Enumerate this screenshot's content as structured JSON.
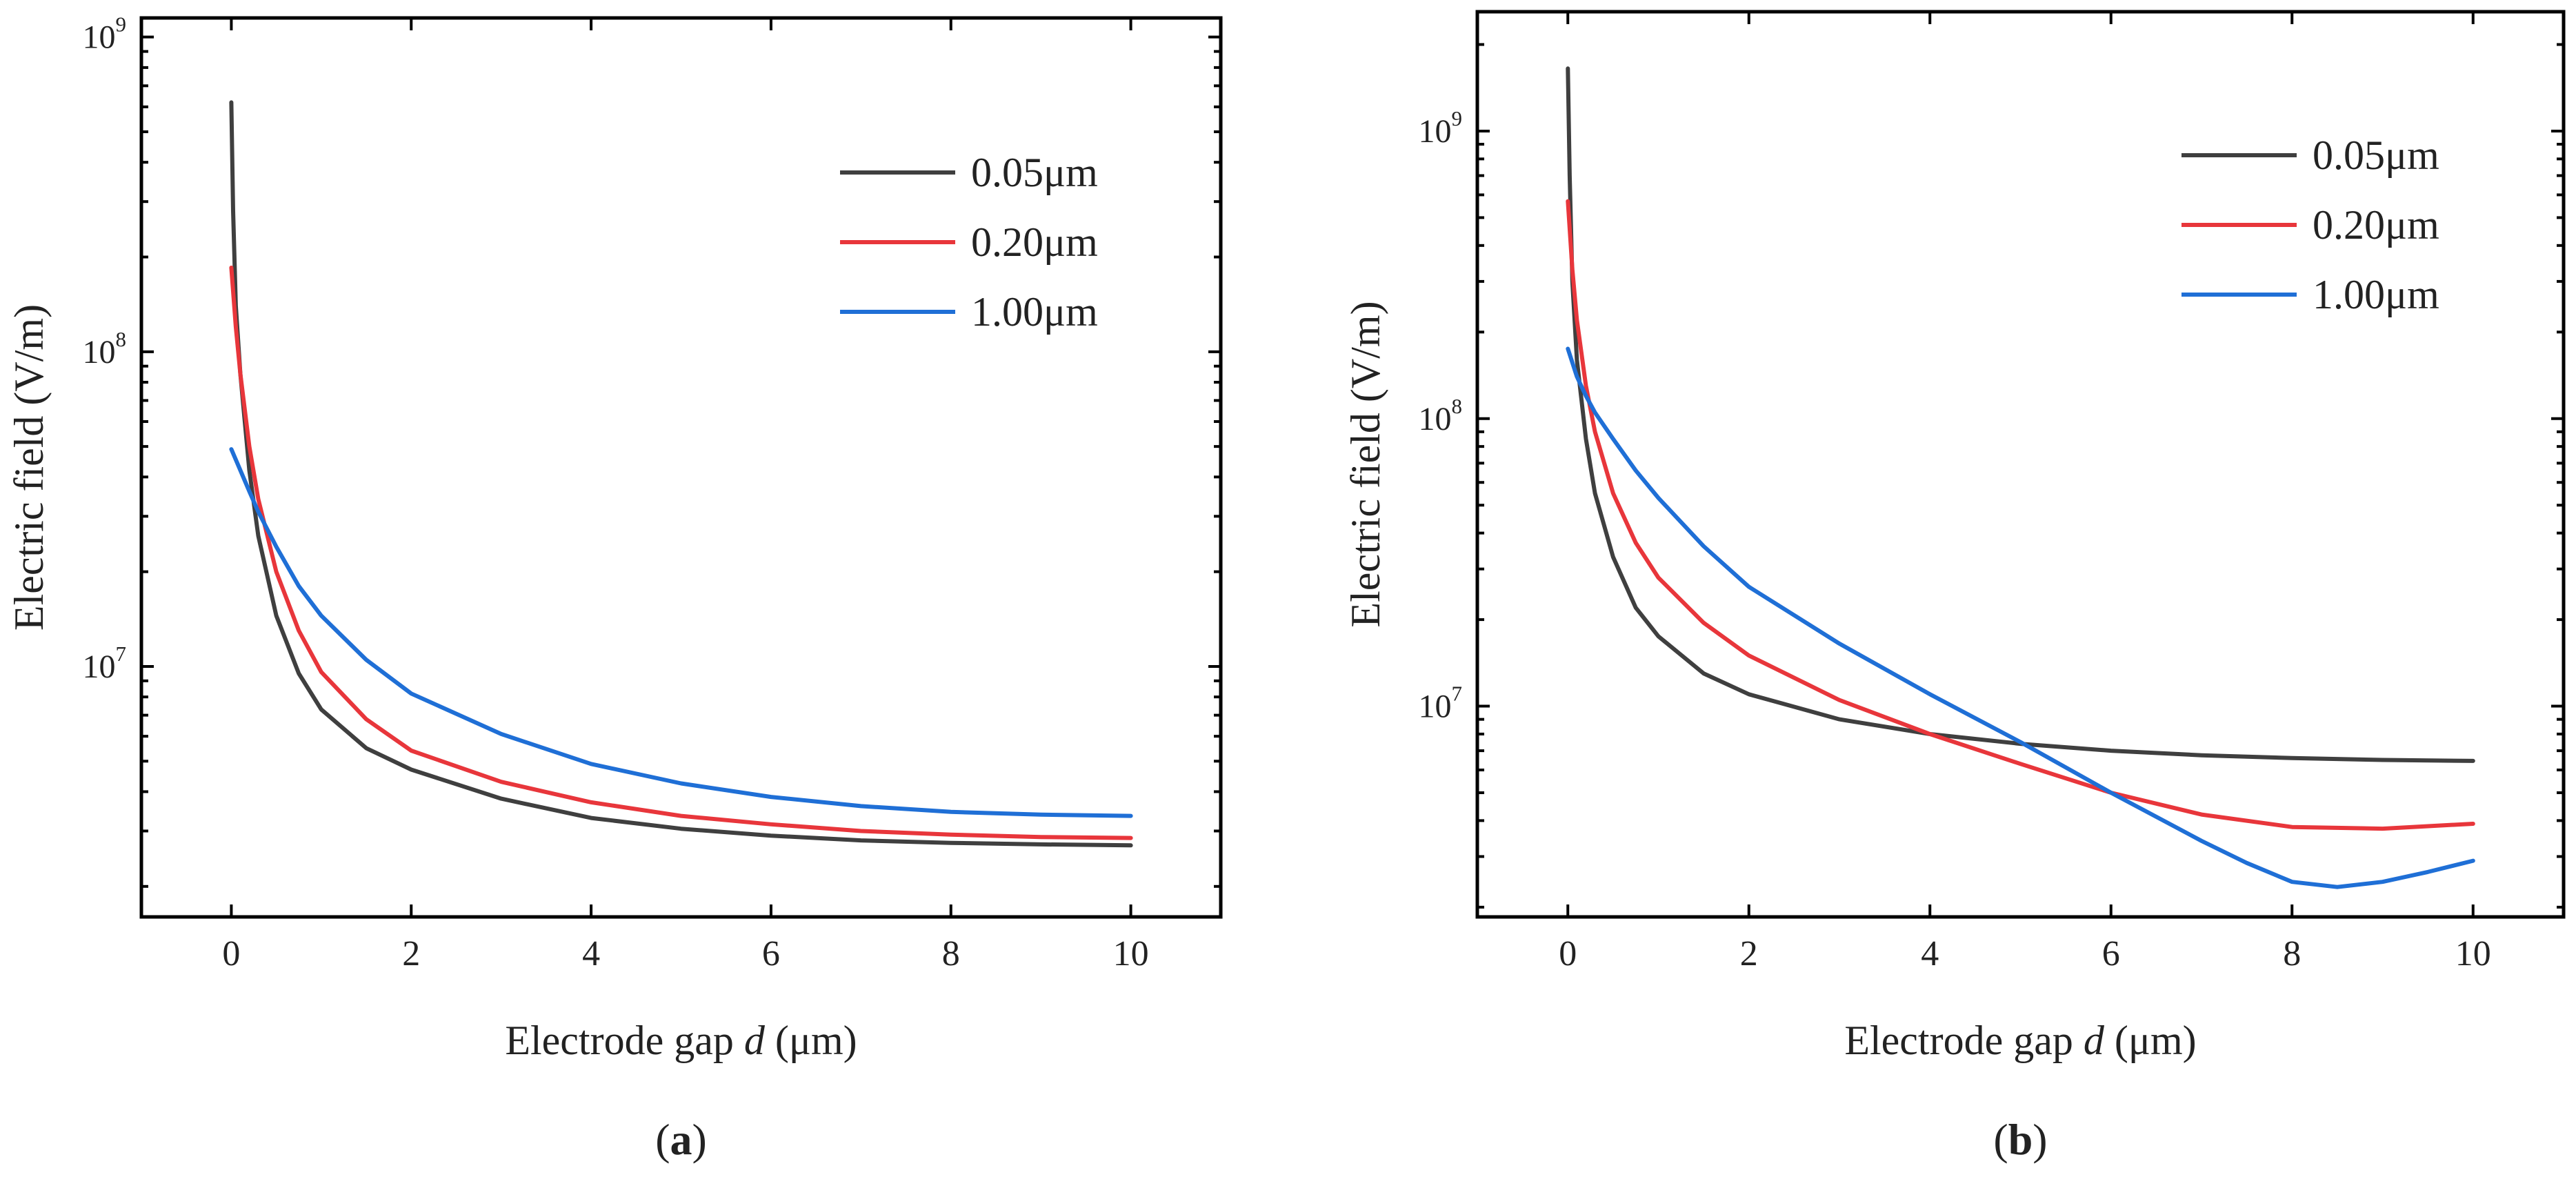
{
  "chart_data": [
    {
      "type": "line",
      "panel": "a",
      "caption": {
        "open": "(",
        "letter": "a",
        "close": ")"
      },
      "xlabel": {
        "main": "Electrode gap ",
        "var": "d",
        "unit": " (μm)"
      },
      "ylabel": "Electric field (V/m)",
      "xscale": "linear",
      "yscale": "log",
      "xlim": [
        -1,
        11
      ],
      "ylim": [
        1600000,
        1150000000
      ],
      "xticks": [
        0,
        2,
        4,
        6,
        8,
        10
      ],
      "xtick_labels": [
        "0",
        "2",
        "4",
        "6",
        "8",
        "10"
      ],
      "yticks": [
        10000000,
        100000000,
        1000000000
      ],
      "ytick_labels": [
        {
          "base": "10",
          "exp": "7"
        },
        {
          "base": "10",
          "exp": "8"
        },
        {
          "base": "10",
          "exp": "9"
        }
      ],
      "legend_position": "top-right",
      "series": [
        {
          "name": "0.05μm",
          "color": "#3f3f3f",
          "x": [
            0,
            0.02,
            0.05,
            0.1,
            0.2,
            0.3,
            0.5,
            0.75,
            1.0,
            1.5,
            2,
            3,
            4,
            5,
            6,
            7,
            8,
            9,
            10
          ],
          "y": [
            620000000,
            280000000,
            140000000,
            85000000,
            42000000,
            26000000,
            14500000,
            9500000,
            7300000,
            5500000,
            4700000,
            3800000,
            3300000,
            3050000,
            2900000,
            2800000,
            2750000,
            2720000,
            2700000
          ]
        },
        {
          "name": "0.20μm",
          "color": "#e8363b",
          "x": [
            0,
            0.05,
            0.1,
            0.2,
            0.3,
            0.5,
            0.75,
            1.0,
            1.5,
            2,
            3,
            4,
            5,
            6,
            7,
            8,
            9,
            10
          ],
          "y": [
            185000000,
            120000000,
            85000000,
            50000000,
            34000000,
            20000000,
            13000000,
            9600000,
            6800000,
            5400000,
            4300000,
            3700000,
            3350000,
            3150000,
            3000000,
            2920000,
            2870000,
            2850000
          ]
        },
        {
          "name": "1.00μm",
          "color": "#1f6fd6",
          "x": [
            0,
            0.1,
            0.2,
            0.3,
            0.5,
            0.75,
            1.0,
            1.5,
            2,
            3,
            4,
            5,
            6,
            7,
            8,
            9,
            10
          ],
          "y": [
            49000000,
            42000000,
            36000000,
            31000000,
            24000000,
            18000000,
            14500000,
            10500000,
            8200000,
            6100000,
            4900000,
            4250000,
            3850000,
            3600000,
            3450000,
            3380000,
            3350000
          ]
        }
      ]
    },
    {
      "type": "line",
      "panel": "b",
      "caption": {
        "open": "(",
        "letter": "b",
        "close": ")"
      },
      "xlabel": {
        "main": "Electrode gap ",
        "var": "d",
        "unit": " (μm)"
      },
      "ylabel": "Electric field (V/m)",
      "xscale": "linear",
      "yscale": "log",
      "xlim": [
        -1,
        11
      ],
      "ylim": [
        1850000,
        2600000000
      ],
      "xticks": [
        0,
        2,
        4,
        6,
        8,
        10
      ],
      "xtick_labels": [
        "0",
        "2",
        "4",
        "6",
        "8",
        "10"
      ],
      "yticks": [
        10000000,
        100000000,
        1000000000
      ],
      "ytick_labels": [
        {
          "base": "10",
          "exp": "7"
        },
        {
          "base": "10",
          "exp": "8"
        },
        {
          "base": "10",
          "exp": "9"
        }
      ],
      "legend_position": "top-right",
      "series": [
        {
          "name": "0.05μm",
          "color": "#3f3f3f",
          "x": [
            0,
            0.02,
            0.05,
            0.1,
            0.2,
            0.3,
            0.5,
            0.75,
            1.0,
            1.5,
            2,
            3,
            4,
            5,
            6,
            7,
            8,
            9,
            10
          ],
          "y": [
            1650000000,
            700000000,
            300000000,
            160000000,
            85000000,
            55000000,
            33000000,
            22000000,
            17500000,
            13000000,
            11000000,
            9000000,
            8000000,
            7400000,
            7000000,
            6750000,
            6600000,
            6500000,
            6450000
          ]
        },
        {
          "name": "0.20μm",
          "color": "#e8363b",
          "x": [
            0,
            0.05,
            0.1,
            0.2,
            0.3,
            0.5,
            0.75,
            1.0,
            1.5,
            2,
            3,
            4,
            5,
            6,
            7,
            8,
            9,
            10
          ],
          "y": [
            570000000,
            330000000,
            220000000,
            130000000,
            90000000,
            55000000,
            37000000,
            28000000,
            19500000,
            15000000,
            10500000,
            8000000,
            6300000,
            5000000,
            4200000,
            3800000,
            3750000,
            3900000
          ]
        },
        {
          "name": "1.00μm",
          "color": "#1f6fd6",
          "x": [
            0,
            0.1,
            0.2,
            0.3,
            0.5,
            0.75,
            1.0,
            1.5,
            2,
            3,
            4,
            5,
            6,
            7,
            7.5,
            8,
            8.5,
            9,
            9.5,
            10
          ],
          "y": [
            175000000,
            140000000,
            120000000,
            105000000,
            85000000,
            66000000,
            53000000,
            36000000,
            26000000,
            16500000,
            11000000,
            7500000,
            5000000,
            3400000,
            2850000,
            2450000,
            2350000,
            2450000,
            2650000,
            2900000
          ]
        }
      ]
    }
  ]
}
